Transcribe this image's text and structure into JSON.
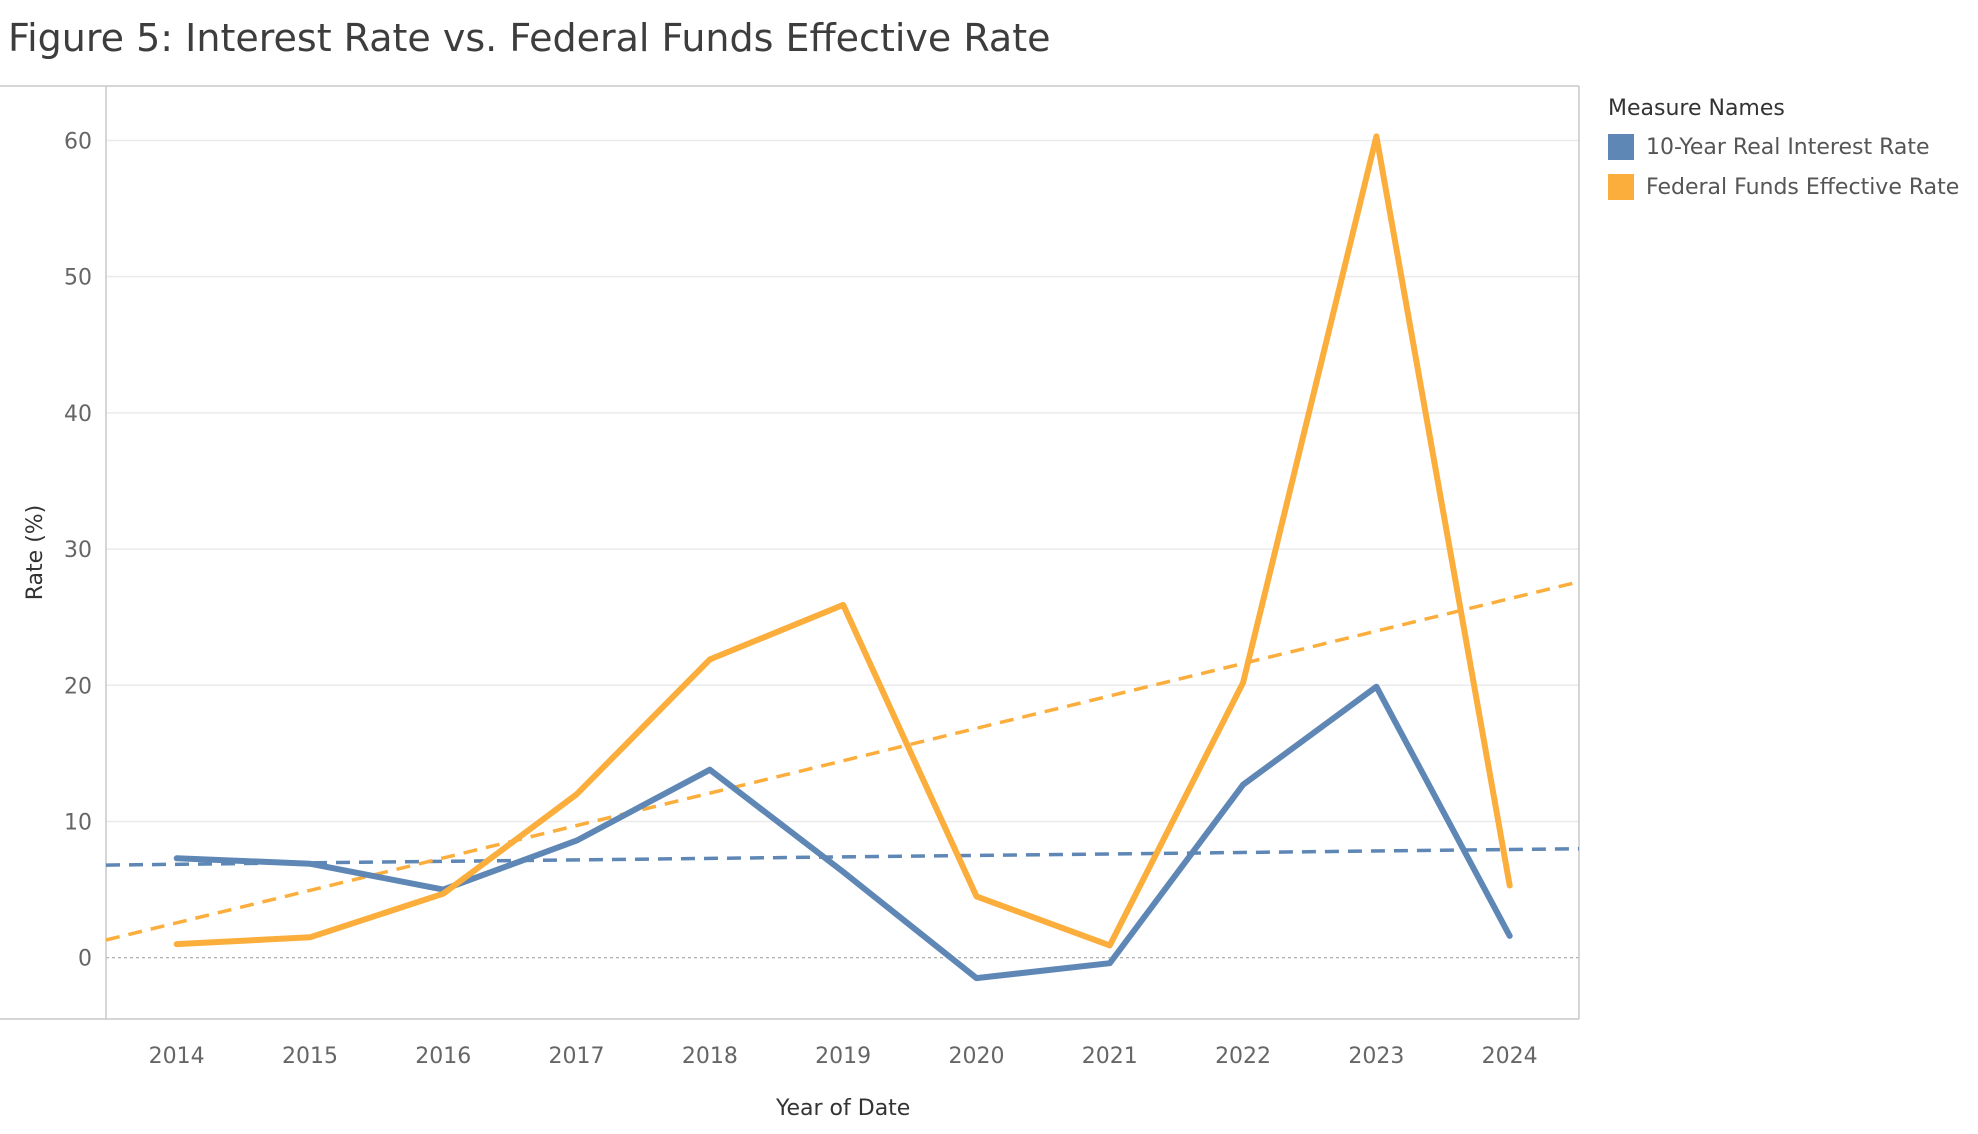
{
  "title": "Figure 5: Interest Rate vs. Federal Funds Effective Rate",
  "legend": {
    "title": "Measure Names",
    "items": [
      {
        "label": "10-Year Real Interest Rate",
        "color": "#5f87b6"
      },
      {
        "label": "Federal Funds Effective Rate",
        "color": "#fbae3c"
      }
    ]
  },
  "chart_data": {
    "type": "line",
    "title": "Figure 5: Interest Rate vs. Federal Funds Effective Rate",
    "xlabel": "Year of Date",
    "ylabel": "Rate (%)",
    "x": [
      2014,
      2015,
      2016,
      2017,
      2018,
      2019,
      2020,
      2021,
      2022,
      2023,
      2024
    ],
    "xlim": [
      2013.47,
      2024.52
    ],
    "ylim": [
      -4.5,
      64
    ],
    "yticks": [
      0,
      10,
      20,
      30,
      40,
      50,
      60
    ],
    "grid": true,
    "legend_position": "right",
    "series": [
      {
        "name": "10-Year Real Interest Rate",
        "color": "#5f87b6",
        "values": [
          7.3,
          6.9,
          5.0,
          8.6,
          13.8,
          6.3,
          -1.5,
          -0.4,
          12.7,
          19.9,
          1.6
        ],
        "trend": {
          "x": [
            2013.47,
            2024.52
          ],
          "y": [
            6.8,
            8.0
          ]
        }
      },
      {
        "name": "Federal Funds Effective Rate",
        "color": "#fbae3c",
        "values": [
          1.0,
          1.5,
          4.7,
          12.0,
          21.9,
          25.9,
          4.5,
          0.9,
          20.2,
          60.3,
          5.3
        ],
        "trend": {
          "x": [
            2013.47,
            2024.52
          ],
          "y": [
            1.3,
            27.6
          ]
        }
      }
    ]
  }
}
